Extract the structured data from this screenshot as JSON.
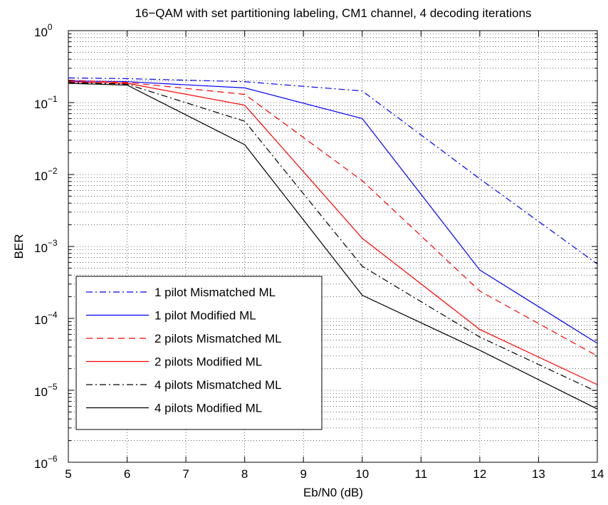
{
  "chart_data": {
    "type": "line",
    "title": "16−QAM with set partitioning labeling, CM1 channel, 4 decoding iterations",
    "xlabel": "Eb/N0 (dB)",
    "ylabel": "BER",
    "xlim": [
      5,
      14
    ],
    "ylim": [
      1e-06,
      1
    ],
    "yscale": "log",
    "grid": true,
    "legend_position": "lower-left",
    "x_ticks": [
      "5",
      "6",
      "7",
      "8",
      "9",
      "10",
      "11",
      "12",
      "13",
      "14"
    ],
    "y_ticks": [
      {
        "base": "10",
        "exp": "0",
        "value": 1
      },
      {
        "base": "10",
        "exp": "−1",
        "value": 0.1
      },
      {
        "base": "10",
        "exp": "−2",
        "value": 0.01
      },
      {
        "base": "10",
        "exp": "−3",
        "value": 0.001
      },
      {
        "base": "10",
        "exp": "−4",
        "value": 0.0001
      },
      {
        "base": "10",
        "exp": "−5",
        "value": 1e-05
      },
      {
        "base": "10",
        "exp": "−6",
        "value": 1e-06
      }
    ],
    "series": [
      {
        "name": "1 pilot Mismatched ML",
        "color": "#0000ff",
        "dash": "dashdot",
        "x": [
          5,
          6,
          8,
          10,
          12,
          14
        ],
        "y": [
          0.22,
          0.215,
          0.195,
          0.145,
          0.0087,
          0.00057
        ]
      },
      {
        "name": "1 pilot Modified ML",
        "color": "#0000ff",
        "dash": "solid",
        "x": [
          5,
          6,
          8,
          10,
          12,
          14
        ],
        "y": [
          0.2,
          0.195,
          0.16,
          0.06,
          0.00047,
          4.5e-05
        ]
      },
      {
        "name": "2 pilots Mismatched ML",
        "color": "#ff0000",
        "dash": "dashed",
        "x": [
          5,
          6,
          8,
          10,
          12,
          14
        ],
        "y": [
          0.205,
          0.19,
          0.13,
          0.0082,
          0.00024,
          3e-05
        ]
      },
      {
        "name": "2 pilots Modified ML",
        "color": "#ff0000",
        "dash": "solid",
        "x": [
          5,
          6,
          8,
          10,
          12,
          14
        ],
        "y": [
          0.195,
          0.185,
          0.092,
          0.0013,
          7e-05,
          1.2e-05
        ]
      },
      {
        "name": "4 pilots Mismatched ML",
        "color": "#000000",
        "dash": "dashdot",
        "x": [
          5,
          6,
          8,
          10,
          12,
          14
        ],
        "y": [
          0.19,
          0.18,
          0.055,
          0.00053,
          5.5e-05,
          9.5e-06
        ]
      },
      {
        "name": "4 pilots Modified ML",
        "color": "#000000",
        "dash": "solid",
        "x": [
          5,
          6,
          8,
          10,
          12,
          14
        ],
        "y": [
          0.185,
          0.175,
          0.026,
          0.00021,
          3.6e-05,
          5.5e-06
        ]
      }
    ]
  }
}
